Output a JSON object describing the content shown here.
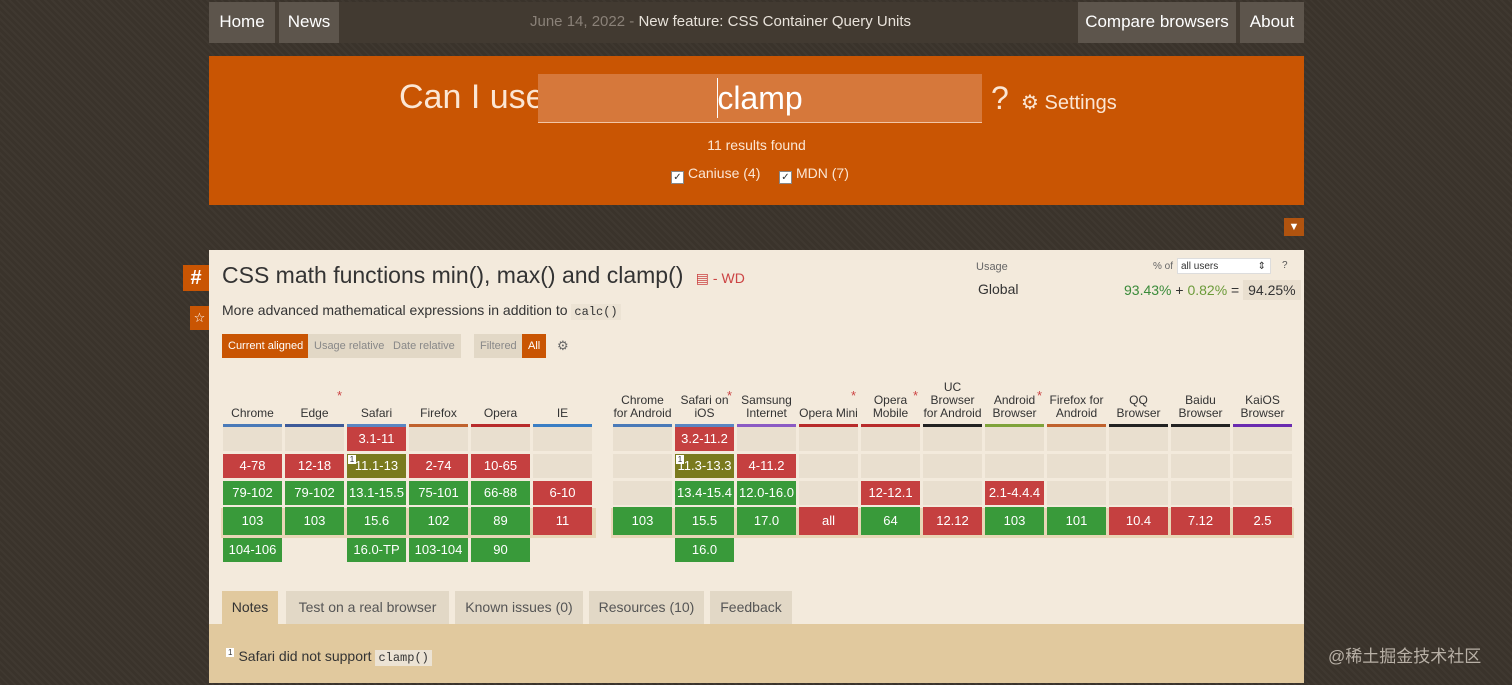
{
  "nav": {
    "home": "Home",
    "news": "News",
    "news_date": "June 14, 2022",
    "news_sep": " - ",
    "news_title": "New feature: CSS Container Query Units",
    "compare": "Compare browsers",
    "about": "About"
  },
  "search": {
    "label": "Can I use",
    "query": "clamp",
    "qmark": "?",
    "settings": "Settings",
    "results": "11 results found",
    "filter_caniuse": "Caniuse (4)",
    "filter_mdn": "MDN (7)"
  },
  "feature": {
    "hash": "#",
    "title": "CSS math functions min(), max() and clamp()",
    "status": "- WD",
    "desc_prefix": "More advanced mathematical expressions in addition to",
    "desc_code": "calc()",
    "usage_label": "Usage",
    "pct_of": "% of",
    "users_select": "all users",
    "usage_help": "?",
    "global_label": "Global",
    "usage_supported": "93.43%",
    "usage_plus": "+",
    "usage_partial": "0.82%",
    "usage_eq": "=",
    "usage_total": "94.25%",
    "view_tabs": [
      "Current aligned",
      "Usage relative",
      "Date relative"
    ],
    "filter_tabs": [
      "Filtered",
      "All"
    ]
  },
  "browsers": [
    {
      "name": "Chrome",
      "color": "#4a7ab8",
      "cells": [
        [
          "",
          ""
        ],
        [
          "4-78",
          "r"
        ],
        [
          "79-102",
          "g"
        ],
        [
          "103",
          "g"
        ],
        [
          "104-106",
          "g"
        ]
      ]
    },
    {
      "name": "Edge",
      "asterisk": "*",
      "color": "#3d5a99",
      "cells": [
        [
          "",
          ""
        ],
        [
          "12-18",
          "r"
        ],
        [
          "79-102",
          "g"
        ],
        [
          "103",
          "g"
        ],
        [
          "",
          ""
        ]
      ]
    },
    {
      "name": "Safari",
      "color": "#5a86c2",
      "cells": [
        [
          "3.1-11",
          "r"
        ],
        [
          "11.1-13",
          "y"
        ],
        [
          "13.1-15.5",
          "g"
        ],
        [
          "15.6",
          "g"
        ],
        [
          "16.0-TP",
          "g"
        ]
      ]
    },
    {
      "name": "Firefox",
      "color": "#c0622d",
      "cells": [
        [
          "",
          ""
        ],
        [
          "2-74",
          "r"
        ],
        [
          "75-101",
          "g"
        ],
        [
          "102",
          "g"
        ],
        [
          "103-104",
          "g"
        ]
      ]
    },
    {
      "name": "Opera",
      "color": "#b82b2b",
      "cells": [
        [
          "",
          ""
        ],
        [
          "10-65",
          "r"
        ],
        [
          "66-88",
          "g"
        ],
        [
          "89",
          "g"
        ],
        [
          "90",
          "g"
        ]
      ]
    },
    {
      "name": "IE",
      "color": "#3a7ec4",
      "cells": [
        [
          "",
          ""
        ],
        [
          "",
          ""
        ],
        [
          "6-10",
          "r"
        ],
        [
          "11",
          "r"
        ],
        [
          "",
          ""
        ]
      ]
    },
    {
      "name": "Chrome for Android",
      "color": "#4a7ab8",
      "cells": [
        [
          "",
          ""
        ],
        [
          "",
          ""
        ],
        [
          "",
          ""
        ],
        [
          "103",
          "g"
        ],
        [
          "",
          ""
        ]
      ]
    },
    {
      "name": "Safari on iOS",
      "asterisk": "*",
      "color": "#5a86c2",
      "cells": [
        [
          "3.2-11.2",
          "r"
        ],
        [
          "11.3-13.3",
          "y"
        ],
        [
          "13.4-15.4",
          "g"
        ],
        [
          "15.5",
          "g"
        ],
        [
          "16.0",
          "g"
        ]
      ]
    },
    {
      "name": "Samsung Internet",
      "color": "#8b5bc4",
      "cells": [
        [
          "",
          ""
        ],
        [
          "4-11.2",
          "r"
        ],
        [
          "12.0-16.0",
          "g"
        ],
        [
          "17.0",
          "g"
        ],
        [
          "",
          ""
        ]
      ]
    },
    {
      "name": "Opera Mini",
      "asterisk": "*",
      "color": "#b82b2b",
      "cells": [
        [
          "",
          ""
        ],
        [
          "",
          ""
        ],
        [
          "",
          ""
        ],
        [
          "all",
          "r"
        ],
        [
          "",
          ""
        ]
      ]
    },
    {
      "name": "Opera Mobile",
      "asterisk": "*",
      "color": "#b82b2b",
      "cells": [
        [
          "",
          ""
        ],
        [
          "",
          ""
        ],
        [
          "12-12.1",
          "r"
        ],
        [
          "64",
          "g"
        ],
        [
          "",
          ""
        ]
      ]
    },
    {
      "name": "UC Browser for Android",
      "color": "#222222",
      "cells": [
        [
          "",
          ""
        ],
        [
          "",
          ""
        ],
        [
          "",
          ""
        ],
        [
          "12.12",
          "r"
        ],
        [
          "",
          ""
        ]
      ]
    },
    {
      "name": "Android Browser",
      "asterisk": "*",
      "color": "#7fa33a",
      "cells": [
        [
          "",
          ""
        ],
        [
          "",
          ""
        ],
        [
          "2.1-4.4.4",
          "r"
        ],
        [
          "103",
          "g"
        ],
        [
          "",
          ""
        ]
      ]
    },
    {
      "name": "Firefox for Android",
      "color": "#c0622d",
      "cells": [
        [
          "",
          ""
        ],
        [
          "",
          ""
        ],
        [
          "",
          ""
        ],
        [
          "101",
          "g"
        ],
        [
          "",
          ""
        ]
      ]
    },
    {
      "name": "QQ Browser",
      "color": "#222222",
      "cells": [
        [
          "",
          ""
        ],
        [
          "",
          ""
        ],
        [
          "",
          ""
        ],
        [
          "10.4",
          "r"
        ],
        [
          "",
          ""
        ]
      ]
    },
    {
      "name": "Baidu Browser",
      "color": "#222222",
      "cells": [
        [
          "",
          ""
        ],
        [
          "",
          ""
        ],
        [
          "",
          ""
        ],
        [
          "7.12",
          "r"
        ],
        [
          "",
          ""
        ]
      ]
    },
    {
      "name": "KaiOS Browser",
      "color": "#6a2bb0",
      "cells": [
        [
          "",
          ""
        ],
        [
          "",
          ""
        ],
        [
          "",
          ""
        ],
        [
          "2.5",
          "r"
        ],
        [
          "",
          ""
        ]
      ]
    }
  ],
  "note_flag": "1",
  "tabs": [
    "Notes",
    "Test on a real browser",
    "Known issues (0)",
    "Resources (10)",
    "Feedback"
  ],
  "footnote": {
    "num": "1",
    "text": "Safari did not support",
    "code": "clamp()"
  },
  "watermark": "@稀土掘金技术社区",
  "colors": {
    "supported": "#399a3a",
    "unsupported": "#c54040",
    "partial": "#7a7a1e",
    "accent": "#c95503"
  }
}
